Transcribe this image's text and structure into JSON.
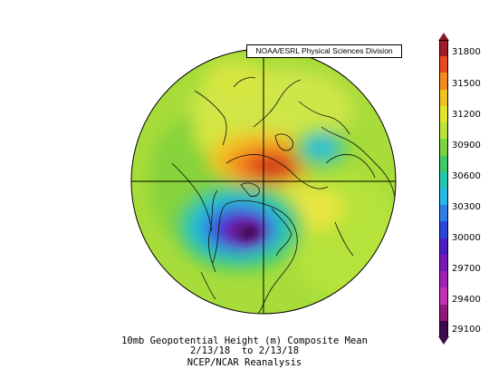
{
  "credit": "NOAA/ESRL Physical Sciences Division",
  "colorbar": {
    "ticks": [
      "31800",
      "31500",
      "31200",
      "30900",
      "30600",
      "30300",
      "30000",
      "29700",
      "29400",
      "29100"
    ],
    "colors": [
      "#a21b2b",
      "#e64b1f",
      "#f38b1e",
      "#f1c320",
      "#e2e629",
      "#b9e33b",
      "#7bd33f",
      "#3fca6a",
      "#22c7b2",
      "#2ab8e6",
      "#2e7ee8",
      "#2a45d8",
      "#4c1fc2",
      "#7a18b6",
      "#a21fb8",
      "#c430b4",
      "#8e1b7a",
      "#3d0b4d"
    ]
  },
  "caption": {
    "line1": "10mb Geopotential Height (m) Composite Mean",
    "line2": "2/13/18  to 2/13/18",
    "line3": "NCEP/NCAR Reanalysis"
  }
}
